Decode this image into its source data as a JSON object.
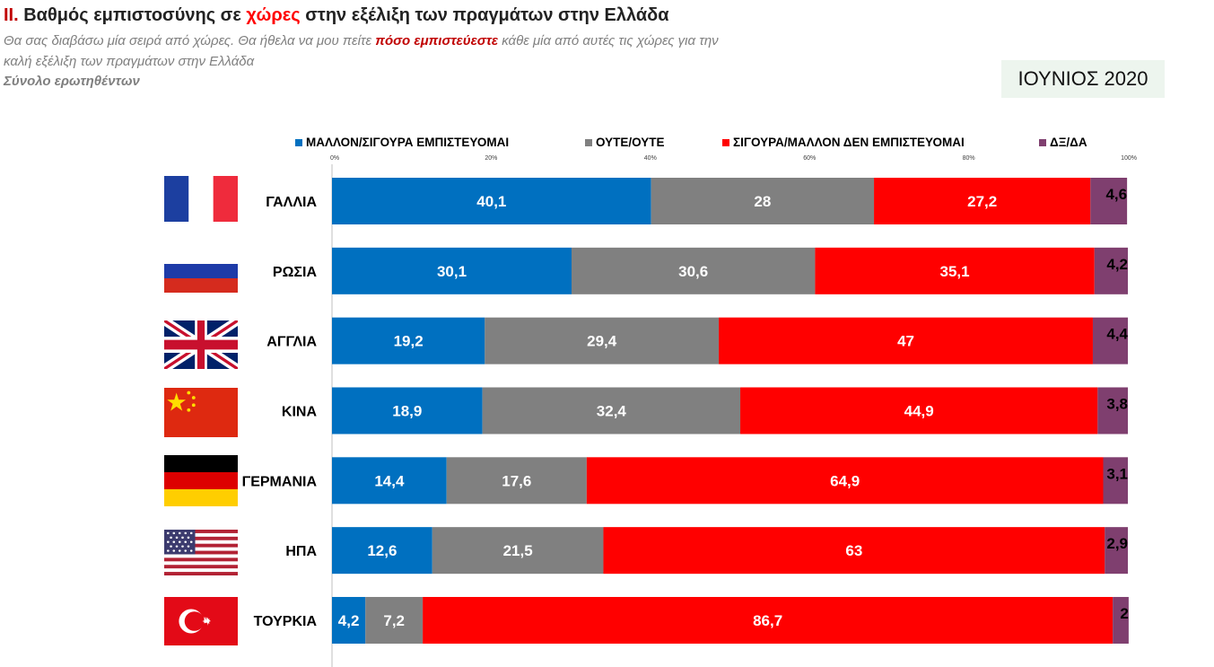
{
  "header": {
    "title_num": "II.",
    "title_a": " Βαθμός εμπιστοσύνης σε ",
    "title_hl": "χώρες",
    "title_b": " στην εξέλιξη των πραγμάτων στην Ελλάδα",
    "subtitle_a": "Θα σας διαβάσω μία σειρά από χώρες. Θα ήθελα να μου πείτε ",
    "subtitle_hl": "πόσο εμπιστεύεστε",
    "subtitle_b": " κάθε μία από αυτές τις χώρες για την",
    "subtitle_line2": "καλή εξέλιξη των πραγμάτων στην Ελλάδα",
    "base": "Σύνολο ερωτηθέντων",
    "month": "ΙΟΥΝΙΟΣ 2020"
  },
  "flags": [
    "france-flag",
    "russia-flag",
    "uk-flag",
    "china-flag",
    "germany-flag",
    "usa-flag",
    "turkey-flag"
  ],
  "chart_data": {
    "type": "bar",
    "orientation": "horizontal",
    "stacked": true,
    "categories": [
      "ΓΑΛΛΙΑ",
      "ΡΩΣΙΑ",
      "ΑΓΓΛΙΑ",
      "ΚΙΝΑ",
      "ΓΕΡΜΑΝΙΑ",
      "ΗΠΑ",
      "ΤΟΥΡΚΙΑ"
    ],
    "series": [
      {
        "name": "ΜΑΛΛΟΝ/ΣΙΓΟΥΡΑ ΕΜΠΙΣΤΕΥΟΜΑΙ",
        "color": "#0070c0",
        "values": [
          40.1,
          30.1,
          19.2,
          18.9,
          14.4,
          12.6,
          4.2
        ],
        "labels": [
          "40,1",
          "30,1",
          "19,2",
          "18,9",
          "14,4",
          "12,6",
          "4,2"
        ]
      },
      {
        "name": "ΟΥΤΕ/ΟΥΤΕ",
        "color": "#808080",
        "values": [
          28,
          30.6,
          29.4,
          32.4,
          17.6,
          21.5,
          7.2
        ],
        "labels": [
          "28",
          "30,6",
          "29,4",
          "32,4",
          "17,6",
          "21,5",
          "7,2"
        ]
      },
      {
        "name": "ΣΙΓΟΥΡΑ/ΜΑΛΛΟΝ ΔΕΝ ΕΜΠΙΣΤΕΥΟΜΑΙ",
        "color": "#ff0000",
        "values": [
          27.2,
          35.1,
          47,
          44.9,
          64.9,
          63,
          86.7
        ],
        "labels": [
          "27,2",
          "35,1",
          "47",
          "44,9",
          "64,9",
          "63",
          "86,7"
        ]
      },
      {
        "name": "ΔΞ/ΔΑ",
        "color": "#7f3f6f",
        "values": [
          4.6,
          4.2,
          4.4,
          3.8,
          3.1,
          2.9,
          2
        ],
        "labels": [
          "4,6",
          "4,2",
          "4,4",
          "3,8",
          "3,1",
          "2,9",
          "2"
        ]
      }
    ],
    "xlim": [
      0,
      100
    ],
    "x_ticks": [
      "0%",
      "20%",
      "40%",
      "60%",
      "80%",
      "100%"
    ],
    "legend": "top"
  }
}
